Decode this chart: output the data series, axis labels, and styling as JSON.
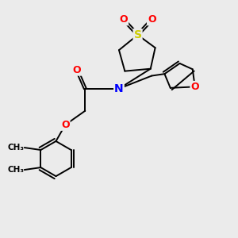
{
  "bg_color": "#ebebeb",
  "atom_colors": {
    "O": "#ff0000",
    "N": "#0000ff",
    "S": "#cccc00",
    "C": "#000000"
  },
  "bond_color": "#000000",
  "line_width": 1.4
}
